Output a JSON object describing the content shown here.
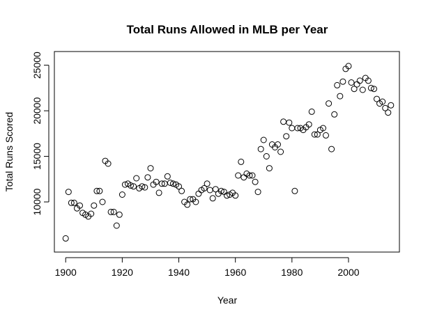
{
  "chart_data": {
    "type": "scatter",
    "title": "Total Runs Allowed in MLB per Year",
    "xlabel": "Year",
    "ylabel": "Total Runs Scored",
    "xlim": [
      1896,
      2018
    ],
    "ylim": [
      4500,
      26500
    ],
    "xticks": [
      1900,
      1920,
      1940,
      1960,
      1980,
      2000
    ],
    "yticks": [
      10000,
      15000,
      20000,
      25000
    ],
    "grid": false,
    "legend": "none",
    "points": [
      [
        1900,
        6000
      ],
      [
        1901,
        11100
      ],
      [
        1902,
        9900
      ],
      [
        1903,
        9900
      ],
      [
        1904,
        9300
      ],
      [
        1905,
        9600
      ],
      [
        1906,
        8800
      ],
      [
        1907,
        8600
      ],
      [
        1908,
        8400
      ],
      [
        1909,
        8700
      ],
      [
        1910,
        9600
      ],
      [
        1911,
        11200
      ],
      [
        1912,
        11200
      ],
      [
        1913,
        10000
      ],
      [
        1914,
        14500
      ],
      [
        1915,
        14200
      ],
      [
        1916,
        8900
      ],
      [
        1917,
        8900
      ],
      [
        1918,
        7400
      ],
      [
        1919,
        8600
      ],
      [
        1920,
        10800
      ],
      [
        1921,
        11900
      ],
      [
        1922,
        12000
      ],
      [
        1923,
        11800
      ],
      [
        1924,
        11700
      ],
      [
        1925,
        12600
      ],
      [
        1926,
        11500
      ],
      [
        1927,
        11700
      ],
      [
        1928,
        11600
      ],
      [
        1929,
        12700
      ],
      [
        1930,
        13700
      ],
      [
        1931,
        11900
      ],
      [
        1932,
        12200
      ],
      [
        1933,
        11000
      ],
      [
        1934,
        12000
      ],
      [
        1935,
        12000
      ],
      [
        1936,
        12800
      ],
      [
        1937,
        12100
      ],
      [
        1938,
        12000
      ],
      [
        1939,
        11900
      ],
      [
        1940,
        11700
      ],
      [
        1941,
        11200
      ],
      [
        1942,
        10000
      ],
      [
        1943,
        9700
      ],
      [
        1944,
        10300
      ],
      [
        1945,
        10300
      ],
      [
        1946,
        10000
      ],
      [
        1947,
        10900
      ],
      [
        1948,
        11300
      ],
      [
        1949,
        11500
      ],
      [
        1950,
        12000
      ],
      [
        1951,
        11300
      ],
      [
        1952,
        10400
      ],
      [
        1953,
        11400
      ],
      [
        1954,
        10900
      ],
      [
        1955,
        11200
      ],
      [
        1956,
        11100
      ],
      [
        1957,
        10700
      ],
      [
        1958,
        10800
      ],
      [
        1959,
        11000
      ],
      [
        1960,
        10700
      ],
      [
        1961,
        12900
      ],
      [
        1962,
        14400
      ],
      [
        1963,
        12700
      ],
      [
        1964,
        13100
      ],
      [
        1965,
        12900
      ],
      [
        1966,
        12900
      ],
      [
        1967,
        12200
      ],
      [
        1968,
        11100
      ],
      [
        1969,
        15800
      ],
      [
        1970,
        16800
      ],
      [
        1971,
        15000
      ],
      [
        1972,
        13700
      ],
      [
        1973,
        16300
      ],
      [
        1974,
        16000
      ],
      [
        1975,
        16300
      ],
      [
        1976,
        15500
      ],
      [
        1977,
        18800
      ],
      [
        1978,
        17200
      ],
      [
        1979,
        18700
      ],
      [
        1980,
        18100
      ],
      [
        1981,
        11200
      ],
      [
        1982,
        18100
      ],
      [
        1983,
        18100
      ],
      [
        1984,
        17900
      ],
      [
        1985,
        18200
      ],
      [
        1986,
        18500
      ],
      [
        1987,
        19900
      ],
      [
        1988,
        17400
      ],
      [
        1989,
        17400
      ],
      [
        1990,
        17900
      ],
      [
        1991,
        18100
      ],
      [
        1992,
        17300
      ],
      [
        1993,
        20800
      ],
      [
        1994,
        15800
      ],
      [
        1995,
        19600
      ],
      [
        1996,
        22800
      ],
      [
        1997,
        21600
      ],
      [
        1998,
        23200
      ],
      [
        1999,
        24600
      ],
      [
        2000,
        24900
      ],
      [
        2001,
        23100
      ],
      [
        2002,
        22400
      ],
      [
        2003,
        22900
      ],
      [
        2004,
        23300
      ],
      [
        2005,
        22300
      ],
      [
        2006,
        23600
      ],
      [
        2007,
        23300
      ],
      [
        2008,
        22500
      ],
      [
        2009,
        22400
      ],
      [
        2010,
        21300
      ],
      [
        2011,
        20800
      ],
      [
        2012,
        21000
      ],
      [
        2013,
        20300
      ],
      [
        2014,
        19800
      ],
      [
        2015,
        20600
      ]
    ]
  }
}
